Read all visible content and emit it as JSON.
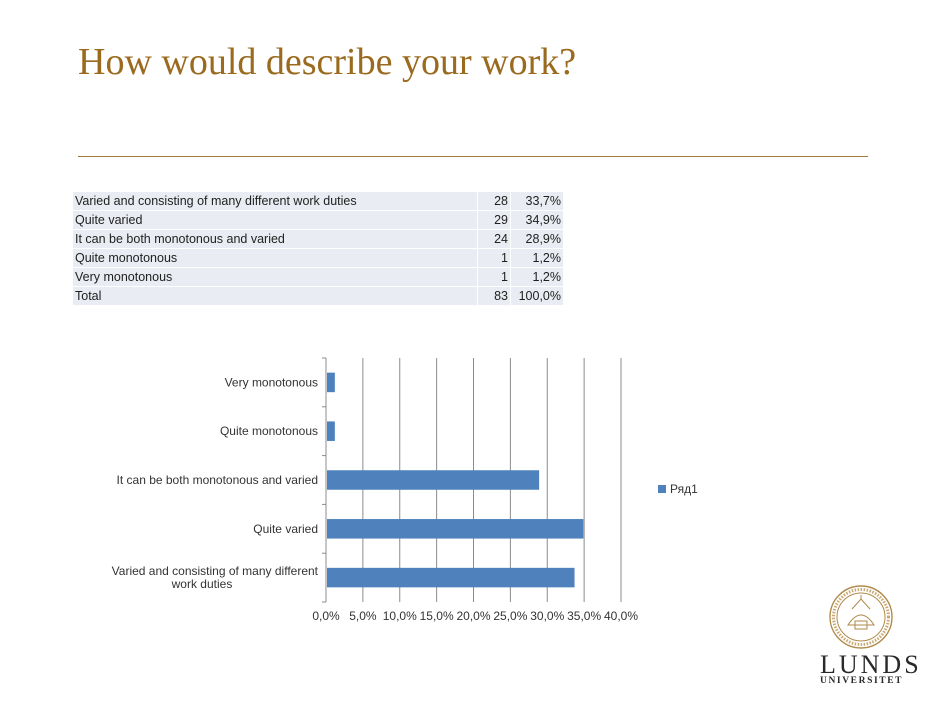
{
  "title": "How would describe your work?",
  "table": {
    "rows": [
      {
        "label": "Varied and consisting of many different work duties",
        "count": "28",
        "pct": "33,7%"
      },
      {
        "label": "Quite varied",
        "count": "29",
        "pct": "34,9%"
      },
      {
        "label": "It can be both monotonous and varied",
        "count": "24",
        "pct": "28,9%"
      },
      {
        "label": "Quite monotonous",
        "count": "1",
        "pct": "1,2%"
      },
      {
        "label": "Very monotonous",
        "count": "1",
        "pct": "1,2%"
      },
      {
        "label": "Total",
        "count": "83",
        "pct": "100,0%"
      }
    ]
  },
  "chart_data": {
    "type": "bar",
    "orientation": "horizontal",
    "categories": [
      "Varied and consisting of many different work duties",
      "Quite varied",
      "It can be both monotonous and varied",
      "Quite monotonous",
      "Very monotonous"
    ],
    "category_label_lines": [
      [
        "Varied and consisting of many different",
        "work duties"
      ],
      [
        "Quite varied"
      ],
      [
        "It can be both monotonous and varied"
      ],
      [
        "Quite monotonous"
      ],
      [
        "Very monotonous"
      ]
    ],
    "series": [
      {
        "name": "Ряд1",
        "values": [
          33.7,
          34.9,
          28.9,
          1.2,
          1.2
        ],
        "color": "#4f81bd"
      }
    ],
    "xlim": [
      0,
      40
    ],
    "xticks": [
      0,
      5,
      10,
      15,
      20,
      25,
      30,
      35,
      40
    ],
    "xtick_labels": [
      "0,0%",
      "5,0%",
      "10,0%",
      "15,0%",
      "20,0%",
      "25,0%",
      "30,0%",
      "35,0%",
      "40,0%"
    ],
    "grid": true,
    "legend_position": "right"
  },
  "logo": {
    "name": "LUNDS",
    "sub": "UNIVERSITET",
    "seal_icon": "lund-university-seal-icon"
  },
  "colors": {
    "title": "#9a6a1e",
    "bar": "#4f81bd",
    "table_cell": "#e9ecf2"
  }
}
